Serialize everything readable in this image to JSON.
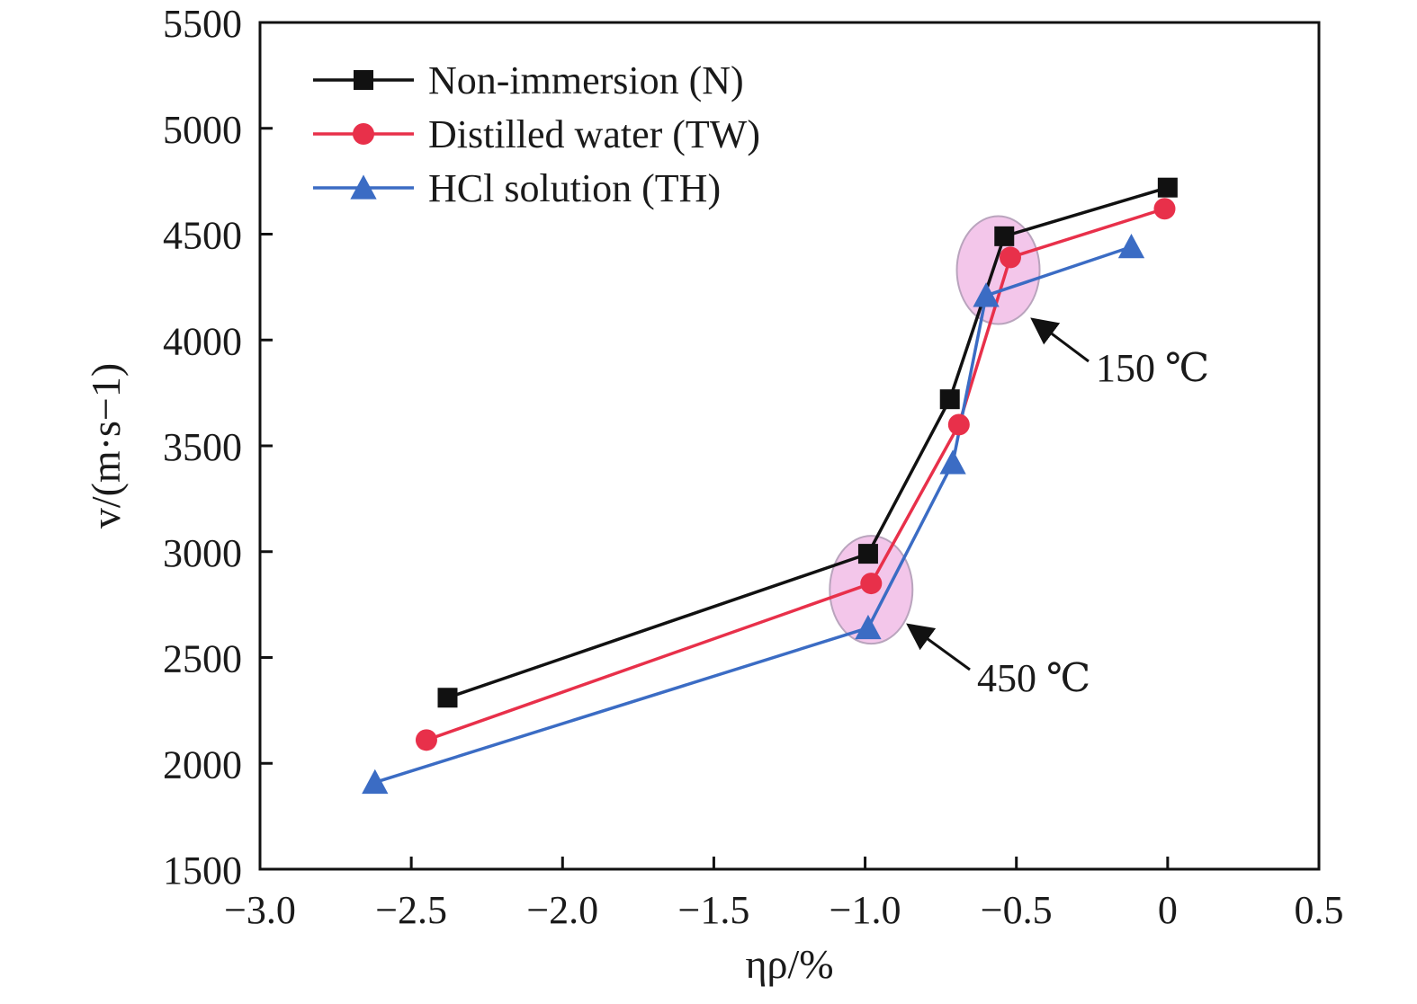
{
  "chart_data": {
    "type": "line",
    "xlabel": "ηρ/%",
    "ylabel": "v/(m·s−1)",
    "xlim": [
      -3.0,
      0.5
    ],
    "ylim": [
      1500,
      5500
    ],
    "xticks": [
      -3.0,
      -2.5,
      -2.0,
      -1.5,
      -1.0,
      -0.5,
      0,
      0.5
    ],
    "xtick_labels": [
      "−3.0",
      "−2.5",
      "−2.0",
      "−1.5",
      "−1.0",
      "−0.5",
      "0",
      "0.5"
    ],
    "yticks": [
      1500,
      2000,
      2500,
      3000,
      3500,
      4000,
      4500,
      5000,
      5500
    ],
    "ytick_labels": [
      "1500",
      "2000",
      "2500",
      "3000",
      "3500",
      "4000",
      "4500",
      "5000",
      "5500"
    ],
    "grid": false,
    "legend_position": "top-left",
    "series": [
      {
        "name": "Non-immersion (N)",
        "color": "#111111",
        "marker": "square",
        "x": [
          -2.38,
          -0.99,
          -0.72,
          -0.54,
          0.0
        ],
        "y": [
          2310,
          2990,
          3720,
          4490,
          4720
        ]
      },
      {
        "name": "Distilled water (TW)",
        "color": "#e8304a",
        "marker": "circle",
        "x": [
          -2.45,
          -0.98,
          -0.69,
          -0.52,
          -0.01
        ],
        "y": [
          2110,
          2850,
          3600,
          4390,
          4620
        ]
      },
      {
        "name": "HCl solution (TH)",
        "color": "#3b6cc4",
        "marker": "triangle",
        "x": [
          -2.62,
          -0.99,
          -0.71,
          -0.6,
          -0.12
        ],
        "y": [
          1910,
          2640,
          3420,
          4210,
          4440
        ]
      }
    ],
    "annotations": [
      {
        "text": "150 ℃",
        "target_x": -0.56,
        "target_y": 4330
      },
      {
        "text": "450 ℃",
        "target_x": -0.98,
        "target_y": 2820
      }
    ],
    "highlight_color": "#f3c6ea"
  }
}
